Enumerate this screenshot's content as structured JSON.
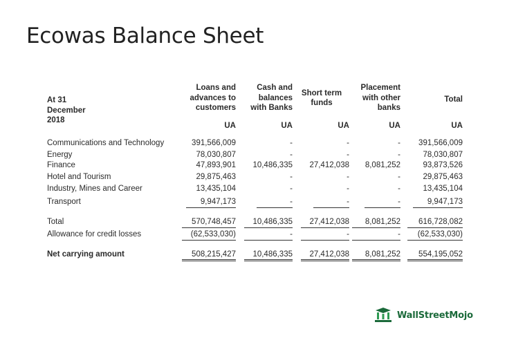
{
  "title": "Ecowas Balance Sheet",
  "header": {
    "date_label": "At 31 December 2018",
    "columns": [
      [
        "Loans and",
        "advances to",
        "customers"
      ],
      [
        "Cash and",
        "balances",
        "with Banks"
      ],
      [
        "Short term",
        "funds"
      ],
      [
        "Placement",
        "with other",
        "banks"
      ],
      [
        "Total"
      ]
    ],
    "units": [
      "UA",
      "UA",
      "UA",
      "UA",
      "UA"
    ]
  },
  "rows": [
    {
      "label": "Communications and Technology",
      "values": [
        "391,566,009",
        "-",
        "-",
        "-",
        "391,566,009"
      ]
    },
    {
      "label": "Energy",
      "values": [
        "78,030,807",
        "-",
        "-",
        "-",
        "78,030,807"
      ]
    },
    {
      "label": "Finance",
      "values": [
        "47,893,901",
        "10,486,335",
        "27,412,038",
        "8,081,252",
        "93,873,526"
      ]
    },
    {
      "label": "Hotel and Tourism",
      "values": [
        "29,875,463",
        "-",
        "-",
        "-",
        "29,875,463"
      ]
    },
    {
      "label": "Industry, Mines and Career",
      "values": [
        "13,435,104",
        "-",
        "-",
        "-",
        "13,435,104"
      ]
    },
    {
      "label": "Transport",
      "values": [
        "9,947,173",
        "-",
        "-",
        "-",
        "9,947,173"
      ]
    }
  ],
  "totals": [
    {
      "label": "Total",
      "values": [
        "570,748,457",
        "10,486,335",
        "27,412,038",
        "8,081,252",
        "616,728,082"
      ]
    },
    {
      "label": "Allowance for credit losses",
      "values": [
        "(62,533,030)",
        "-",
        "-",
        "-",
        "(62,533,030)"
      ]
    }
  ],
  "net": {
    "label": "Net carrying amount",
    "values": [
      "508,215,427",
      "10,486,335",
      "27,412,038",
      "8,081,252",
      "554,195,052"
    ]
  },
  "logo": {
    "text": "WallStreetMojo",
    "icon": "wallstreetmojo-logo-icon",
    "color": "#1b6a3a"
  }
}
